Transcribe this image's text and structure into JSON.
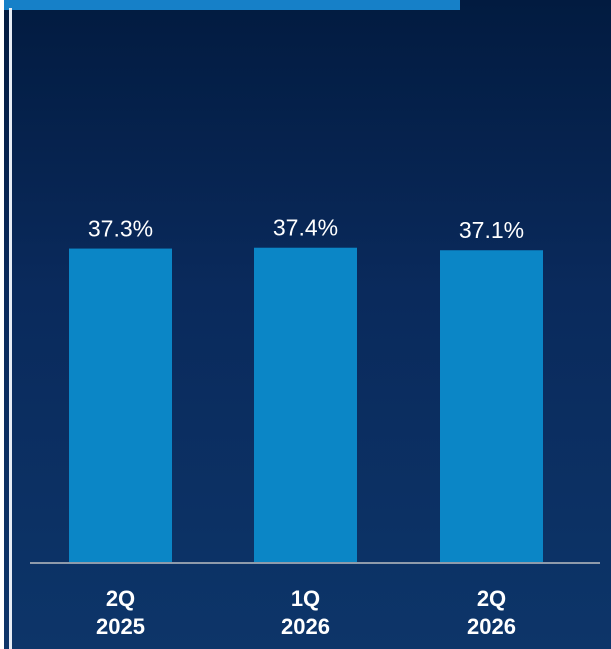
{
  "colors": {
    "bar": "#0b86c6",
    "top_strip": "#1680c8",
    "baseline": "#8f9bab"
  },
  "chart_data": {
    "type": "bar",
    "categories": [
      [
        "2Q",
        "2025"
      ],
      [
        "1Q",
        "2026"
      ],
      [
        "2Q",
        "2026"
      ]
    ],
    "values": [
      37.3,
      37.4,
      37.1
    ],
    "value_labels": [
      "37.3%",
      "37.4%",
      "37.1%"
    ],
    "title": "",
    "xlabel": "",
    "ylabel": "",
    "grid": false,
    "legend": "none"
  }
}
